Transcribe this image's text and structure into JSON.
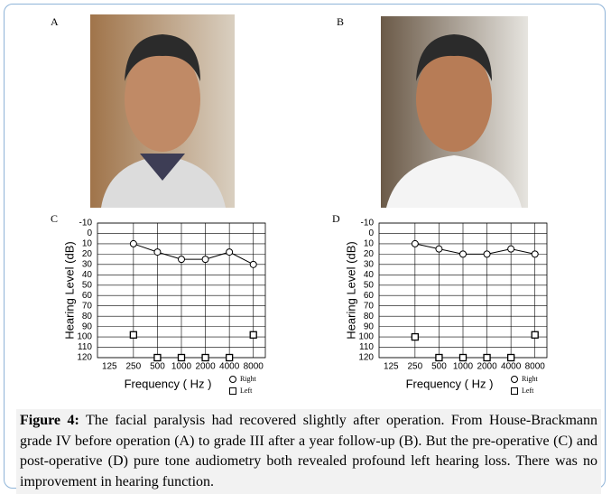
{
  "panels": [
    {
      "label": "A"
    },
    {
      "label": "B"
    }
  ],
  "chart_data": [
    {
      "type": "audiogram",
      "panel": "C",
      "x_label": "Frequency ( Hz )",
      "y_label": "Hearing Level (dB)",
      "categories": [
        "125",
        "250",
        "500",
        "1000",
        "2000",
        "4000",
        "8000"
      ],
      "ylim": [
        120,
        -10
      ],
      "yticks": [
        -10,
        0,
        10,
        20,
        30,
        40,
        50,
        60,
        70,
        80,
        90,
        100,
        110,
        120
      ],
      "grid": true,
      "series": [
        {
          "name": "Right",
          "marker": "circle",
          "color": "#000000",
          "values": [
            null,
            10,
            18,
            25,
            25,
            18,
            30
          ]
        },
        {
          "name": "Left",
          "marker": "square",
          "color": "#000000",
          "values": [
            null,
            98,
            120,
            120,
            120,
            120,
            98
          ]
        }
      ]
    },
    {
      "type": "audiogram",
      "panel": "D",
      "x_label": "Frequency ( Hz )",
      "y_label": "Hearing Level (dB)",
      "categories": [
        "125",
        "250",
        "500",
        "1000",
        "2000",
        "4000",
        "8000"
      ],
      "ylim": [
        120,
        -10
      ],
      "yticks": [
        -10,
        0,
        10,
        20,
        30,
        40,
        50,
        60,
        70,
        80,
        90,
        100,
        110,
        120
      ],
      "grid": true,
      "series": [
        {
          "name": "Right",
          "marker": "circle",
          "color": "#000000",
          "values": [
            null,
            10,
            15,
            20,
            20,
            15,
            20
          ]
        },
        {
          "name": "Left",
          "marker": "square",
          "color": "#000000",
          "values": [
            null,
            100,
            120,
            120,
            120,
            120,
            98
          ]
        }
      ]
    }
  ],
  "caption": {
    "label": "Figure 4:",
    "text": "The facial paralysis had recovered slightly after operation. From House-Brackmann grade IV before operation (A) to grade III after a year follow-up (B). But the pre-operative (C) and post-operative (D) pure tone audiometry both revealed profound left hearing loss. There was no improvement in hearing function."
  }
}
